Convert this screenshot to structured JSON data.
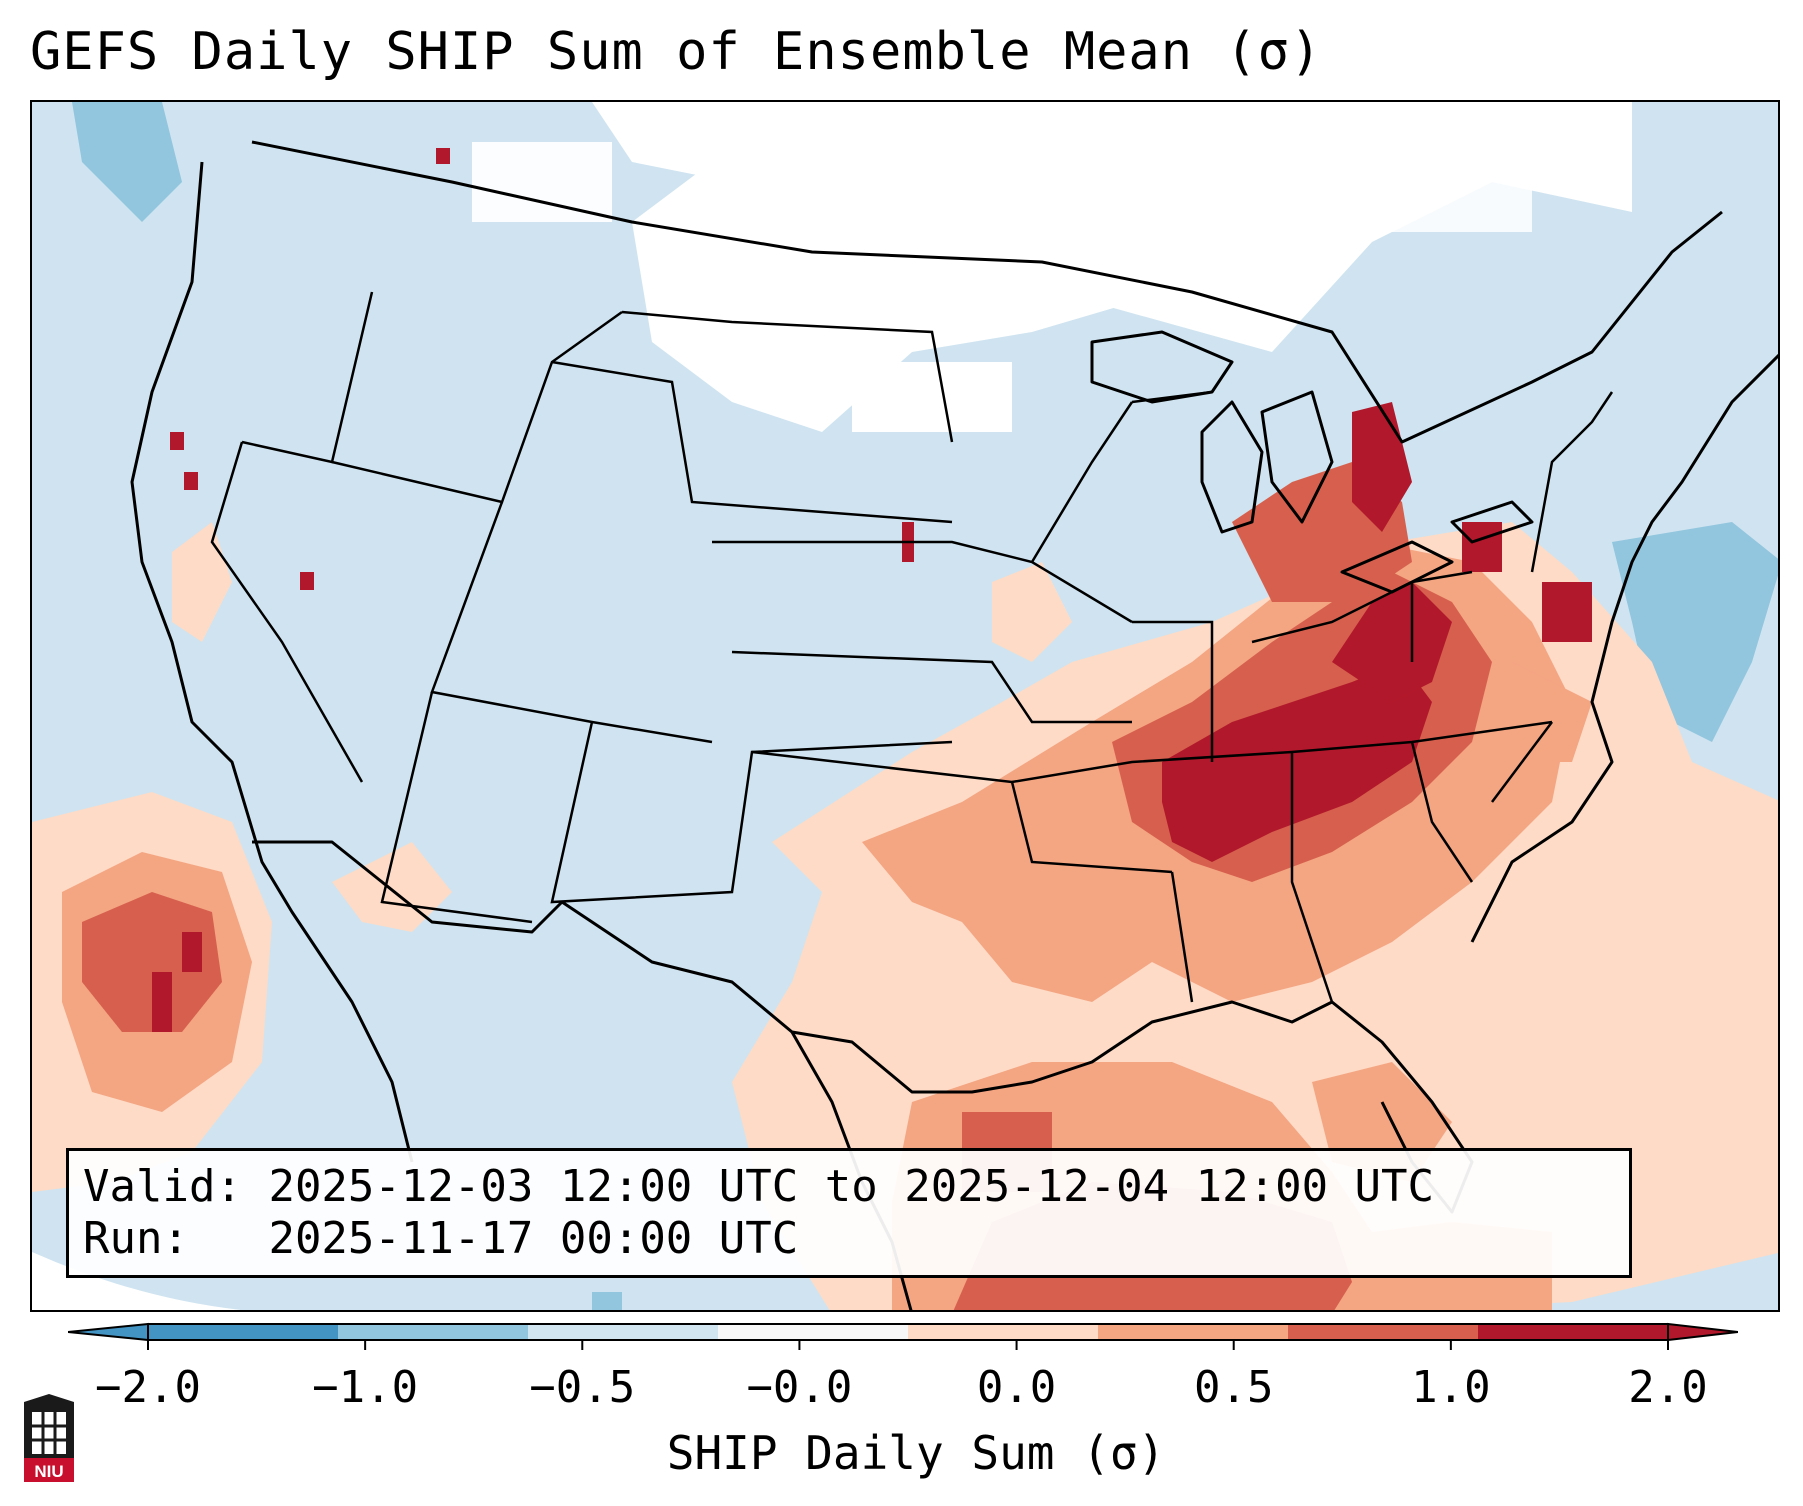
{
  "title": "GEFS Daily SHIP Sum of Ensemble Mean (σ)",
  "info": {
    "valid_label": "Valid:",
    "valid_value": "2025-12-03 12:00 UTC to 2025-12-04 12:00 UTC",
    "run_label": "Run:",
    "run_value": "2025-11-17 00:00 UTC"
  },
  "colorbar": {
    "label": "SHIP Daily Sum (σ)",
    "ticks": [
      "−2.0",
      "−1.0",
      "−0.5",
      "−0.0",
      "0.0",
      "0.5",
      "1.0",
      "2.0"
    ],
    "colors": [
      "#4393c3",
      "#92c5de",
      "#d1e5f0",
      "#f7f7f7",
      "#fddbc7",
      "#f4a582",
      "#d6604d",
      "#b2182b"
    ]
  },
  "map": {
    "projection": "Lambert conformal, CONUS",
    "field": "SHIP daily sum anomaly, ensemble mean",
    "max_anomaly_region": "Kentucky / Tennessee / Ohio Valley / Mid-Atlantic",
    "colors": {
      "ocean_neutral": "#cfe4f0",
      "northern_plains_near_zero": "#ffffff",
      "coastlines_borders": "#000000"
    }
  },
  "logo": {
    "text": "NIU",
    "name": "niu-logo"
  }
}
